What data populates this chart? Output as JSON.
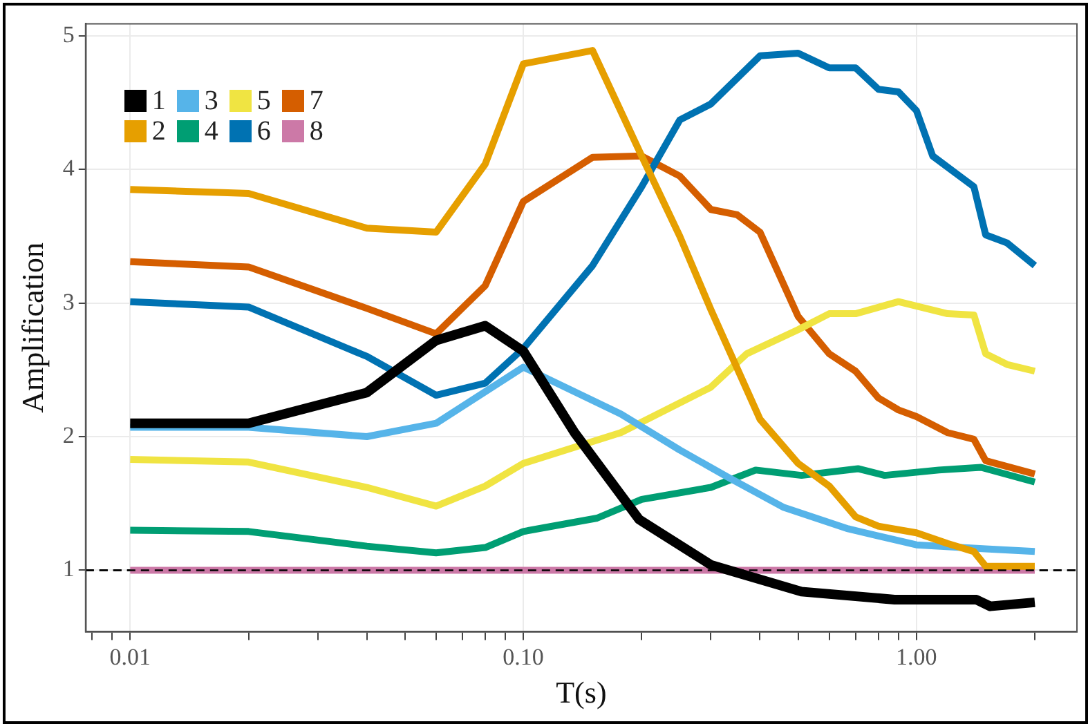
{
  "chart_data": {
    "type": "line",
    "xlabel": "T(s)",
    "ylabel": "Amplification",
    "log": "x",
    "xlim": [
      0.0077,
      2.56
    ],
    "ylim": [
      0.54,
      5.09
    ],
    "xticks": [
      {
        "value": 0.008,
        "label": null
      },
      {
        "value": 0.009,
        "label": null
      },
      {
        "value": 0.01,
        "label": "0.01"
      },
      {
        "value": 0.02,
        "label": null
      },
      {
        "value": 0.03,
        "label": null
      },
      {
        "value": 0.04,
        "label": null
      },
      {
        "value": 0.05,
        "label": null
      },
      {
        "value": 0.06,
        "label": null
      },
      {
        "value": 0.07,
        "label": null
      },
      {
        "value": 0.08,
        "label": null
      },
      {
        "value": 0.09,
        "label": null
      },
      {
        "value": 0.1,
        "label": "0.10"
      },
      {
        "value": 0.2,
        "label": null
      },
      {
        "value": 0.3,
        "label": null
      },
      {
        "value": 0.4,
        "label": null
      },
      {
        "value": 0.5,
        "label": null
      },
      {
        "value": 0.6,
        "label": null
      },
      {
        "value": 0.7,
        "label": null
      },
      {
        "value": 0.8,
        "label": null
      },
      {
        "value": 0.9,
        "label": null
      },
      {
        "value": 1,
        "label": "1.00"
      },
      {
        "value": 2,
        "label": null
      }
    ],
    "yticks": [
      1,
      2,
      3,
      4,
      5
    ],
    "grid": true,
    "legend": "top left",
    "marker": "none",
    "line_style": "solid",
    "ref_lines": [
      {
        "axis": "y",
        "value": 1,
        "label": null,
        "color": "#000000",
        "line_style": "dashed"
      }
    ],
    "series": [
      {
        "name": "1",
        "color": "#000000",
        "x": [
          0.01,
          0.02,
          0.04,
          0.06,
          0.08,
          0.1,
          0.135,
          0.197,
          0.3,
          0.51,
          0.88,
          1.42,
          1.54,
          2.0
        ],
        "values": [
          2.1,
          2.1,
          2.33,
          2.72,
          2.83,
          2.64,
          2.03,
          1.38,
          1.04,
          0.84,
          0.78,
          0.78,
          0.73,
          0.76
        ]
      },
      {
        "name": "2",
        "color": "#e69f00",
        "x": [
          0.01,
          0.02,
          0.04,
          0.06,
          0.08,
          0.1,
          0.15,
          0.2,
          0.25,
          0.3,
          0.4,
          0.5,
          0.6,
          0.7,
          0.8,
          1.0,
          1.2,
          1.4,
          1.5,
          2.0
        ],
        "values": [
          3.85,
          3.82,
          3.56,
          3.53,
          4.04,
          4.79,
          4.89,
          4.1,
          3.5,
          2.95,
          2.13,
          1.8,
          1.63,
          1.4,
          1.33,
          1.28,
          1.2,
          1.14,
          1.03,
          1.03
        ]
      },
      {
        "name": "3",
        "color": "#56b4e9",
        "x": [
          0.01,
          0.02,
          0.04,
          0.06,
          0.1,
          0.177,
          0.25,
          0.33,
          0.46,
          0.67,
          1.0,
          1.5,
          2.0
        ],
        "values": [
          2.07,
          2.07,
          2.0,
          2.1,
          2.52,
          2.17,
          1.9,
          1.7,
          1.47,
          1.31,
          1.19,
          1.16,
          1.14
        ]
      },
      {
        "name": "4",
        "color": "#009e73",
        "x": [
          0.01,
          0.02,
          0.04,
          0.06,
          0.08,
          0.1,
          0.154,
          0.2,
          0.3,
          0.39,
          0.51,
          0.71,
          0.83,
          1.14,
          1.46,
          2.0
        ],
        "values": [
          1.3,
          1.29,
          1.18,
          1.13,
          1.17,
          1.29,
          1.39,
          1.53,
          1.62,
          1.75,
          1.71,
          1.76,
          1.71,
          1.75,
          1.77,
          1.66
        ]
      },
      {
        "name": "5",
        "color": "#f0e442",
        "x": [
          0.01,
          0.02,
          0.04,
          0.06,
          0.08,
          0.1,
          0.177,
          0.3,
          0.37,
          0.5,
          0.6,
          0.7,
          0.9,
          1.2,
          1.4,
          1.5,
          1.7,
          2.0
        ],
        "values": [
          1.83,
          1.81,
          1.62,
          1.48,
          1.63,
          1.8,
          2.03,
          2.37,
          2.62,
          2.8,
          2.92,
          2.92,
          3.01,
          2.92,
          2.91,
          2.62,
          2.54,
          2.49
        ]
      },
      {
        "name": "6",
        "color": "#0072b2",
        "x": [
          0.01,
          0.02,
          0.04,
          0.06,
          0.08,
          0.1,
          0.15,
          0.2,
          0.25,
          0.3,
          0.4,
          0.5,
          0.6,
          0.7,
          0.8,
          0.9,
          1.0,
          1.1,
          1.4,
          1.5,
          1.7,
          2.0
        ],
        "values": [
          3.01,
          2.97,
          2.6,
          2.31,
          2.4,
          2.66,
          3.28,
          3.87,
          4.37,
          4.49,
          4.85,
          4.87,
          4.76,
          4.76,
          4.6,
          4.58,
          4.44,
          4.1,
          3.87,
          3.51,
          3.45,
          3.28
        ]
      },
      {
        "name": "7",
        "color": "#d55e00",
        "x": [
          0.01,
          0.02,
          0.04,
          0.06,
          0.08,
          0.1,
          0.15,
          0.2,
          0.25,
          0.3,
          0.35,
          0.4,
          0.5,
          0.6,
          0.7,
          0.8,
          0.9,
          1.0,
          1.2,
          1.4,
          1.5,
          2.0
        ],
        "values": [
          3.31,
          3.27,
          2.96,
          2.77,
          3.13,
          3.76,
          4.09,
          4.1,
          3.95,
          3.7,
          3.66,
          3.53,
          2.9,
          2.62,
          2.49,
          2.29,
          2.2,
          2.15,
          2.03,
          1.98,
          1.82,
          1.72
        ]
      },
      {
        "name": "8",
        "color": "#cc79a7",
        "x": [
          0.01,
          2.0
        ],
        "values": [
          1,
          1
        ]
      }
    ]
  }
}
